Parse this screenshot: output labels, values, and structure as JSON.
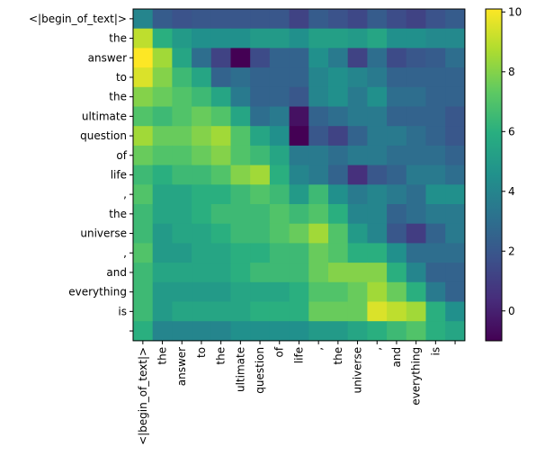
{
  "chart_data": {
    "type": "heatmap",
    "title": "",
    "xlabel": "",
    "ylabel": "",
    "x_tokens": [
      "<|begin_of_text|>",
      "the",
      " answer",
      " to",
      " the",
      " ultimate",
      " question",
      " of",
      " life",
      ",",
      " the",
      " universe",
      ",",
      " and",
      " everything",
      " is",
      ""
    ],
    "y_tokens": [
      "<|begin_of_text|>",
      "the",
      " answer",
      " to",
      " the",
      " ultimate",
      " question",
      " of",
      " life",
      ",",
      " the",
      " universe",
      ",",
      " and",
      " everything",
      " is",
      ""
    ],
    "values": [
      [
        4.0,
        2.2,
        1.8,
        2.0,
        2.0,
        2.0,
        2.0,
        2.0,
        1.2,
        2.2,
        1.8,
        1.4,
        2.2,
        1.6,
        1.2,
        1.8,
        2.2
      ],
      [
        9.0,
        6.0,
        5.0,
        4.5,
        4.5,
        4.5,
        5.0,
        5.0,
        4.5,
        5.2,
        5.2,
        5.0,
        5.5,
        4.5,
        4.5,
        4.2,
        4.2
      ],
      [
        10.1,
        8.5,
        5.5,
        3.0,
        1.2,
        -1.0,
        1.5,
        2.5,
        2.5,
        4.5,
        3.5,
        1.2,
        3.0,
        1.5,
        2.0,
        2.2,
        3.0
      ],
      [
        9.5,
        8.0,
        6.5,
        5.5,
        2.5,
        3.0,
        2.5,
        2.5,
        2.5,
        4.0,
        4.5,
        4.0,
        3.5,
        2.5,
        2.5,
        2.5,
        2.5
      ],
      [
        8.0,
        7.5,
        7.0,
        6.5,
        5.5,
        3.5,
        2.5,
        2.5,
        2.0,
        4.0,
        4.5,
        3.5,
        4.5,
        3.0,
        3.0,
        2.5,
        2.5
      ],
      [
        7.0,
        6.5,
        7.0,
        7.5,
        7.0,
        5.5,
        3.0,
        3.5,
        -0.5,
        2.5,
        3.0,
        3.5,
        3.5,
        2.5,
        2.5,
        2.5,
        2.0
      ],
      [
        8.5,
        7.5,
        7.5,
        8.0,
        8.5,
        7.0,
        5.5,
        4.5,
        -1.0,
        2.0,
        1.2,
        2.5,
        3.5,
        3.5,
        3.0,
        2.5,
        2.0
      ],
      [
        7.5,
        7.0,
        7.0,
        7.5,
        8.0,
        7.0,
        6.5,
        5.5,
        3.5,
        3.5,
        3.0,
        3.5,
        3.5,
        3.0,
        3.0,
        3.0,
        2.5
      ],
      [
        6.5,
        6.0,
        6.5,
        6.5,
        7.0,
        8.0,
        8.5,
        6.0,
        4.0,
        3.5,
        2.5,
        0.5,
        2.0,
        2.5,
        3.5,
        3.5,
        3.0
      ],
      [
        7.0,
        5.5,
        5.5,
        6.0,
        6.0,
        6.5,
        7.0,
        6.5,
        5.0,
        6.5,
        4.5,
        3.5,
        4.0,
        3.5,
        3.0,
        4.5,
        4.5
      ],
      [
        6.5,
        5.5,
        5.5,
        6.0,
        6.5,
        6.5,
        6.5,
        7.0,
        6.5,
        7.0,
        6.0,
        4.0,
        4.0,
        2.5,
        3.0,
        3.5,
        3.5
      ],
      [
        6.5,
        5.0,
        5.5,
        5.5,
        6.0,
        6.5,
        6.5,
        7.0,
        7.5,
        8.5,
        7.0,
        5.0,
        4.0,
        2.0,
        1.0,
        2.5,
        3.5
      ],
      [
        7.0,
        5.0,
        5.0,
        5.5,
        5.5,
        6.0,
        6.0,
        6.5,
        6.5,
        7.5,
        7.0,
        6.0,
        6.0,
        4.5,
        3.0,
        3.0,
        3.0
      ],
      [
        6.5,
        5.5,
        5.5,
        5.5,
        5.5,
        6.0,
        6.5,
        6.5,
        6.5,
        7.5,
        8.0,
        8.0,
        8.0,
        6.0,
        4.0,
        2.5,
        2.5
      ],
      [
        6.5,
        5.0,
        5.0,
        5.0,
        5.0,
        5.5,
        5.5,
        5.5,
        6.0,
        7.0,
        7.0,
        7.5,
        8.5,
        7.5,
        6.0,
        3.5,
        2.5
      ],
      [
        6.5,
        5.0,
        5.5,
        5.5,
        5.5,
        5.5,
        6.0,
        6.0,
        6.0,
        7.5,
        7.5,
        7.5,
        9.5,
        9.0,
        8.5,
        6.0,
        4.5
      ],
      [
        6.0,
        4.0,
        4.0,
        4.0,
        4.0,
        4.5,
        4.5,
        4.5,
        4.5,
        5.0,
        5.0,
        5.5,
        6.0,
        6.5,
        7.0,
        6.0,
        5.5
      ]
    ],
    "vmin": -1.0,
    "vmax": 10.1,
    "colormap": "viridis",
    "colorbar_ticks": [
      0,
      2,
      4,
      6,
      8,
      10
    ],
    "grid": false,
    "legend": "colorbar right"
  }
}
